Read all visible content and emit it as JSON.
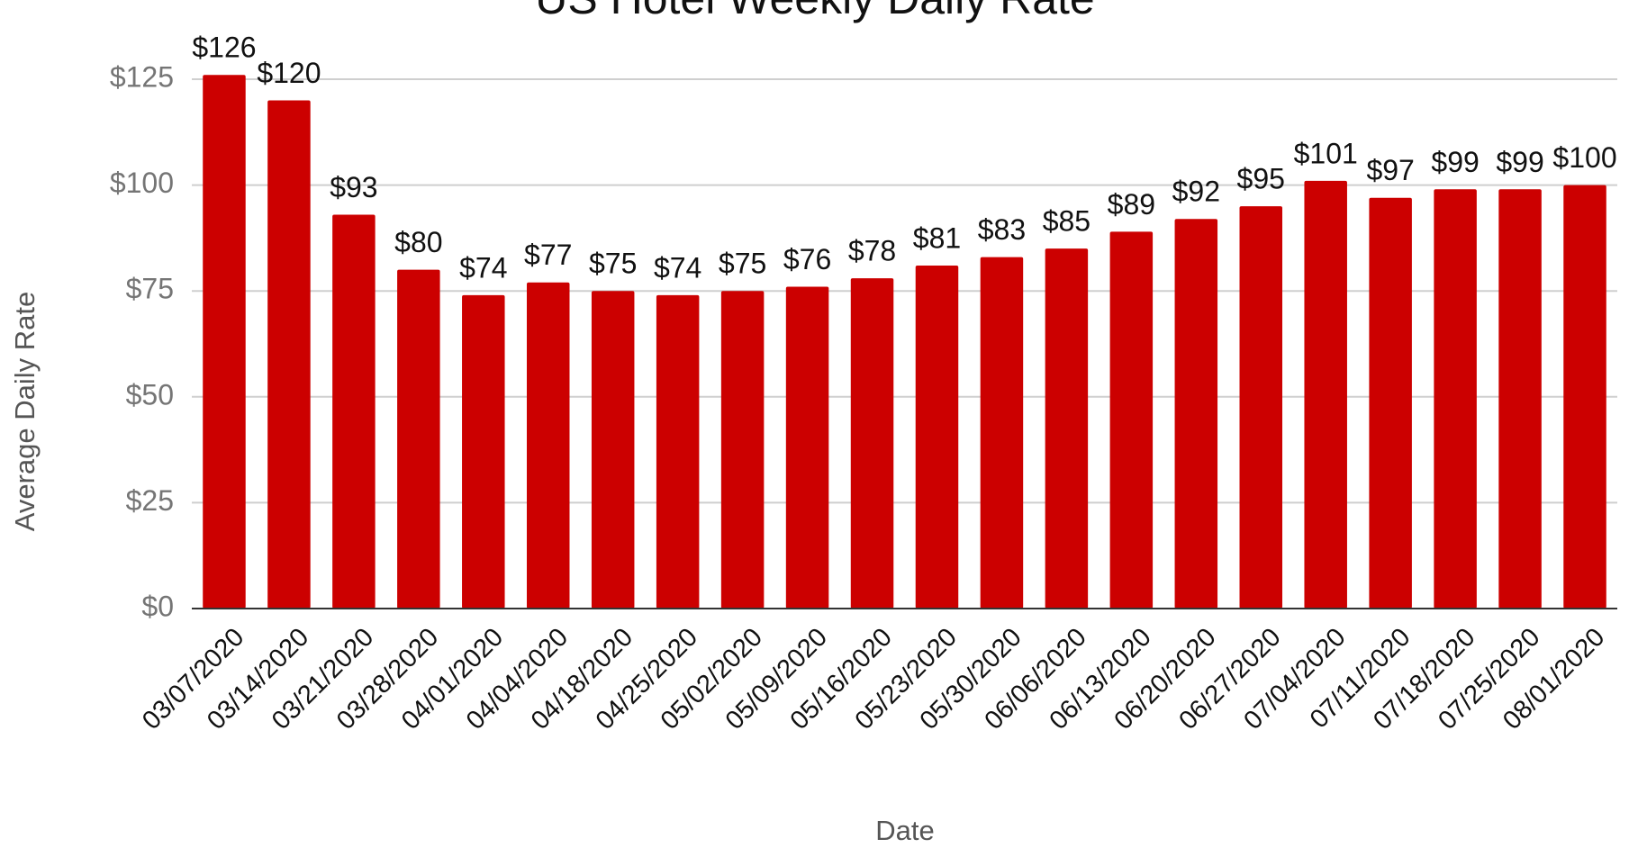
{
  "chart_data": {
    "type": "bar",
    "title": "US Hotel Weekly Daily Rate",
    "x_label": "Date",
    "y_label": "Average Daily Rate",
    "categories": [
      "03/07/2020",
      "03/14/2020",
      "03/21/2020",
      "03/28/2020",
      "04/01/2020",
      "04/04/2020",
      "04/18/2020",
      "04/25/2020",
      "05/02/2020",
      "05/09/2020",
      "05/16/2020",
      "05/23/2020",
      "05/30/2020",
      "06/06/2020",
      "06/13/2020",
      "06/20/2020",
      "06/27/2020",
      "07/04/2020",
      "07/11/2020",
      "07/18/2020",
      "07/25/2020",
      "08/01/2020"
    ],
    "values": [
      126,
      120,
      93,
      80,
      74,
      77,
      75,
      74,
      75,
      76,
      78,
      81,
      83,
      85,
      89,
      92,
      95,
      101,
      97,
      99,
      99,
      100
    ],
    "value_labels": [
      "$126",
      "$120",
      "$93",
      "$80",
      "$74",
      "$77",
      "$75",
      "$74",
      "$75",
      "$76",
      "$78",
      "$81",
      "$83",
      "$85",
      "$89",
      "$92",
      "$95",
      "$101",
      "$97",
      "$99",
      "$99",
      "$100"
    ],
    "color": "#cc0000",
    "ylim": [
      0,
      125
    ],
    "yticks": [
      {
        "value": 0,
        "label": "$0"
      },
      {
        "value": 25,
        "label": "$25"
      },
      {
        "value": 50,
        "label": "$50"
      },
      {
        "value": 75,
        "label": "$75"
      },
      {
        "value": 100,
        "label": "$100"
      },
      {
        "value": 125,
        "label": "$125"
      }
    ],
    "grid": true
  }
}
